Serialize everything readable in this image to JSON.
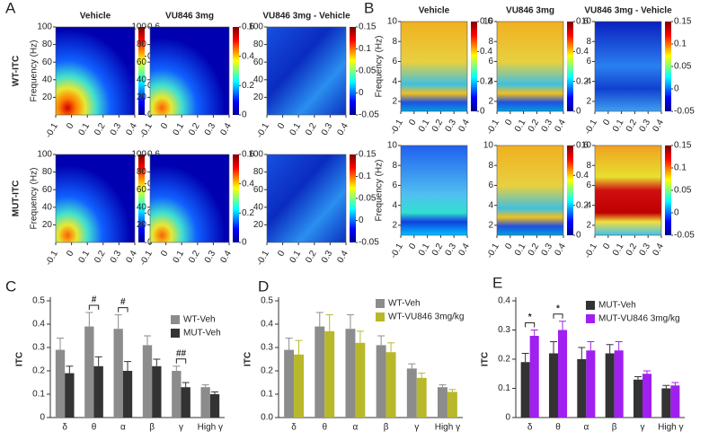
{
  "heatmaps": [
    {
      "label": "A",
      "columns": [
        "Vehicle",
        "VU846 3mg",
        "VU846 3mg - Vehicle"
      ],
      "rows": [
        "WT-ITC",
        "MUT-ITC"
      ],
      "ylabel": "Frequency (Hz)",
      "ylim": [
        0,
        100
      ],
      "yticks": [
        20,
        40,
        60,
        80,
        100
      ],
      "xlim": [
        -0.1,
        0.4
      ],
      "xticks": [
        -0.1,
        0,
        0.1,
        0.2,
        0.3,
        0.4
      ],
      "colorbars": [
        {
          "lim": [
            0,
            0.6
          ],
          "ticks": [
            0,
            0.2,
            0.4,
            0.6
          ]
        },
        {
          "lim": [
            -0.05,
            0.15
          ],
          "ticks": [
            -0.05,
            0,
            0.05,
            0.1,
            0.15
          ]
        }
      ]
    },
    {
      "label": "B",
      "columns": [
        "Vehicle",
        "VU846 3mg",
        "VU846 3mg - Vehicle"
      ],
      "ylabel": "Frequency (Hz)",
      "ylim": [
        1,
        10
      ],
      "yticks": [
        2,
        4,
        6,
        8,
        10
      ],
      "xlim": [
        -0.1,
        0.4
      ],
      "xticks": [
        -0.1,
        0,
        0.1,
        0.2,
        0.3,
        0.4
      ],
      "colorbars": [
        {
          "lim": [
            0,
            0.6
          ],
          "ticks": [
            0,
            0.2,
            0.4,
            0.6
          ]
        },
        {
          "lim": [
            -0.05,
            0.15
          ],
          "ticks": [
            -0.05,
            0,
            0.05,
            0.1,
            0.15
          ]
        }
      ]
    }
  ],
  "chart_data": [
    {
      "type": "bar",
      "panel": "C",
      "ylabel": "ITC",
      "categories": [
        "δ",
        "θ",
        "α",
        "β",
        "γ",
        "High γ"
      ],
      "ylim": [
        0,
        0.5
      ],
      "yticks": [
        0,
        0.1,
        0.2,
        0.3,
        0.4,
        0.5
      ],
      "annotations": [
        "#",
        "#",
        "##"
      ],
      "series": [
        {
          "name": "WT-Veh",
          "color": "#8c8c8c",
          "values": [
            0.29,
            0.39,
            0.38,
            0.31,
            0.2,
            0.13
          ],
          "errors": [
            0.05,
            0.06,
            0.06,
            0.04,
            0.02,
            0.01
          ]
        },
        {
          "name": "MUT-Veh",
          "color": "#333333",
          "values": [
            0.19,
            0.22,
            0.2,
            0.22,
            0.13,
            0.1
          ],
          "errors": [
            0.03,
            0.04,
            0.04,
            0.03,
            0.02,
            0.01
          ]
        }
      ]
    },
    {
      "type": "bar",
      "panel": "D",
      "ylabel": "ITC",
      "categories": [
        "δ",
        "θ",
        "α",
        "β",
        "γ",
        "High γ"
      ],
      "ylim": [
        0,
        0.5
      ],
      "yticks": [
        {
          "value": 0,
          "label": "0.0"
        },
        0.1,
        0.2,
        0.3,
        0.4,
        0.5
      ],
      "series": [
        {
          "name": "WT-Veh",
          "color": "#8c8c8c",
          "values": [
            0.29,
            0.39,
            0.38,
            0.31,
            0.21,
            0.13
          ],
          "errors": [
            0.05,
            0.06,
            0.06,
            0.04,
            0.02,
            0.01
          ]
        },
        {
          "name": "WT-VU846 3mg/kg",
          "color": "#b8b82a",
          "values": [
            0.27,
            0.37,
            0.32,
            0.28,
            0.17,
            0.11
          ],
          "errors": [
            0.06,
            0.07,
            0.05,
            0.04,
            0.02,
            0.01
          ]
        }
      ]
    },
    {
      "type": "bar",
      "panel": "E",
      "ylabel": "ITC",
      "categories": [
        "δ",
        "θ",
        "α",
        "β",
        "γ",
        "High γ"
      ],
      "ylim": [
        0,
        0.4
      ],
      "yticks": [
        0,
        0.1,
        0.2,
        0.3,
        0.4
      ],
      "annotations": [
        "*",
        "*"
      ],
      "series": [
        {
          "name": "MUT-Veh",
          "color": "#333333",
          "values": [
            0.19,
            0.22,
            0.2,
            0.22,
            0.13,
            0.1
          ],
          "errors": [
            0.03,
            0.04,
            0.04,
            0.03,
            0.01,
            0.01
          ]
        },
        {
          "name": "MUT-VU846 3mg/kg",
          "color": "#a020f0",
          "values": [
            0.28,
            0.3,
            0.23,
            0.23,
            0.15,
            0.11
          ],
          "errors": [
            0.02,
            0.03,
            0.03,
            0.03,
            0.01,
            0.01
          ]
        }
      ]
    }
  ]
}
